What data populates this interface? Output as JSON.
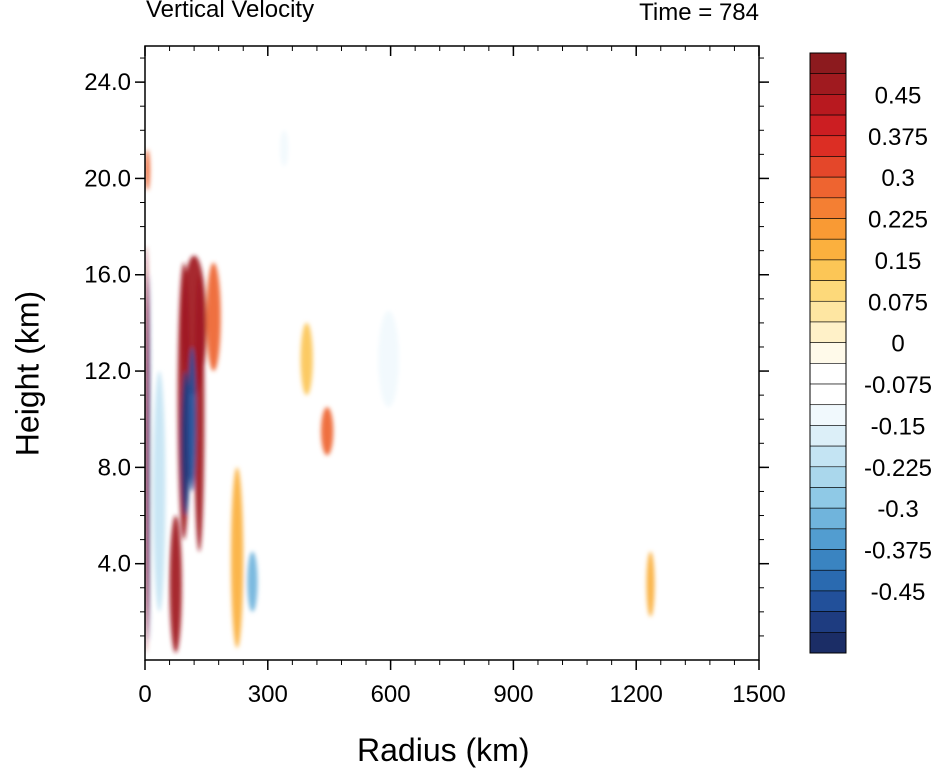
{
  "chart_data": {
    "type": "heatmap",
    "title_left": "Vertical Velocity",
    "title_right": "Time = 784",
    "xlabel": "Radius (km)",
    "ylabel": "Height (km)",
    "xlim": [
      0,
      1500
    ],
    "ylim": [
      0,
      25.5
    ],
    "x_ticks": [
      "0",
      "300",
      "600",
      "900",
      "1200",
      "1500"
    ],
    "y_ticks": [
      "4.0",
      "8.0",
      "12.0",
      "16.0",
      "20.0",
      "24.0"
    ],
    "colorbar": {
      "levels": [
        "0.45",
        "0.375",
        "0.3",
        "0.225",
        "0.15",
        "0.075",
        "0",
        "-0.075",
        "-0.15",
        "-0.225",
        "-0.3",
        "-0.375",
        "-0.45"
      ],
      "colors": [
        "#8c1a1e",
        "#a01a1f",
        "#b8191f",
        "#cc1e22",
        "#dc2e24",
        "#e4472a",
        "#ee6430",
        "#f47f33",
        "#f99a34",
        "#fbb03e",
        "#fcc656",
        "#fdd97a",
        "#fee6a2",
        "#fff1c8",
        "#fffaea",
        "#ffffff",
        "#ffffff",
        "#f1f9fd",
        "#dceff8",
        "#c4e4f3",
        "#aad7ec",
        "#8fc9e6",
        "#70b4dc",
        "#529dd0",
        "#3a84c1",
        "#2a6ab0",
        "#22509a",
        "#1e3c80",
        "#1b2d66"
      ]
    },
    "features": [
      {
        "x": 0,
        "x2": 8,
        "y": 0.3,
        "y2": 17.2,
        "value": 0.5
      },
      {
        "x": 6,
        "x2": 12,
        "y": 0.8,
        "y2": 16.0,
        "value": -0.5
      },
      {
        "x": 0,
        "x2": 12,
        "y": 19.5,
        "y2": 21.2,
        "value": 0.3
      },
      {
        "x": 60,
        "x2": 90,
        "y": 0.3,
        "y2": 6.0,
        "value": 0.5
      },
      {
        "x": 80,
        "x2": 110,
        "y": 5.0,
        "y2": 16.5,
        "value": 0.5
      },
      {
        "x": 90,
        "x2": 150,
        "y": 11.0,
        "y2": 16.8,
        "value": 0.5
      },
      {
        "x": 88,
        "x2": 110,
        "y": 6.0,
        "y2": 12.0,
        "value": -0.5
      },
      {
        "x": 120,
        "x2": 145,
        "y": 4.5,
        "y2": 16.0,
        "value": 0.5
      },
      {
        "x": 105,
        "x2": 125,
        "y": 7.0,
        "y2": 13.0,
        "value": -0.45
      },
      {
        "x": 150,
        "x2": 185,
        "y": 12.0,
        "y2": 16.5,
        "value": 0.3
      },
      {
        "x": 20,
        "x2": 50,
        "y": 2.0,
        "y2": 12.0,
        "value": -0.2
      },
      {
        "x": 210,
        "x2": 240,
        "y": 0.5,
        "y2": 8.0,
        "value": 0.2
      },
      {
        "x": 250,
        "x2": 275,
        "y": 2.0,
        "y2": 4.5,
        "value": -0.3
      },
      {
        "x": 430,
        "x2": 460,
        "y": 8.5,
        "y2": 10.5,
        "value": 0.3
      },
      {
        "x": 380,
        "x2": 410,
        "y": 11.0,
        "y2": 14.0,
        "value": 0.15
      },
      {
        "x": 570,
        "x2": 620,
        "y": 10.5,
        "y2": 14.5,
        "value": -0.1
      },
      {
        "x": 330,
        "x2": 350,
        "y": 20.5,
        "y2": 22.0,
        "value": -0.12
      },
      {
        "x": 1225,
        "x2": 1245,
        "y": 1.8,
        "y2": 4.5,
        "value": 0.2
      }
    ]
  }
}
